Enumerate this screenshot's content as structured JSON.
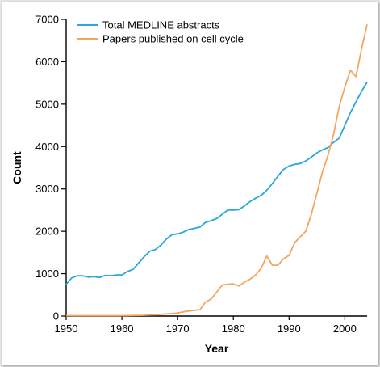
{
  "chart_data": {
    "type": "line",
    "xlabel": "Year",
    "ylabel": "Count",
    "xlim": [
      1950,
      2004
    ],
    "ylim": [
      0,
      7000
    ],
    "xticks": [
      "1950",
      "1960",
      "1970",
      "1980",
      "1990",
      "2000"
    ],
    "yticks": [
      "0",
      "1000",
      "2000",
      "3000",
      "4000",
      "5000",
      "6000",
      "7000"
    ],
    "grid": false,
    "legend_position": "top-left",
    "series": [
      {
        "name": "Total MEDLINE abstracts",
        "color": "#2ba6de",
        "x": [
          1950,
          1951,
          1952,
          1953,
          1954,
          1955,
          1956,
          1957,
          1958,
          1959,
          1960,
          1961,
          1962,
          1963,
          1964,
          1965,
          1966,
          1967,
          1968,
          1969,
          1970,
          1971,
          1972,
          1973,
          1974,
          1975,
          1976,
          1977,
          1978,
          1979,
          1980,
          1981,
          1982,
          1983,
          1984,
          1985,
          1986,
          1987,
          1988,
          1989,
          1990,
          1991,
          1992,
          1993,
          1994,
          1995,
          1996,
          1997,
          1998,
          1999,
          2000,
          2001,
          2002,
          2003,
          2004
        ],
        "values": [
          750,
          900,
          950,
          950,
          920,
          930,
          910,
          960,
          950,
          970,
          970,
          1050,
          1100,
          1250,
          1400,
          1530,
          1570,
          1670,
          1820,
          1920,
          1940,
          1980,
          2040,
          2070,
          2100,
          2210,
          2250,
          2300,
          2400,
          2500,
          2500,
          2510,
          2600,
          2700,
          2780,
          2850,
          2970,
          3130,
          3300,
          3460,
          3540,
          3580,
          3600,
          3660,
          3750,
          3850,
          3920,
          3980,
          4100,
          4200,
          4500,
          4800,
          5050,
          5300,
          5520
        ]
      },
      {
        "name": "Papers published on cell cycle",
        "color": "#f2a662",
        "x": [
          1950,
          1955,
          1960,
          1964,
          1966,
          1968,
          1970,
          1971,
          1972,
          1974,
          1975,
          1976,
          1977,
          1978,
          1979,
          1980,
          1981,
          1982,
          1983,
          1984,
          1985,
          1986,
          1987,
          1988,
          1989,
          1990,
          1991,
          1992,
          1993,
          1994,
          1995,
          1996,
          1997,
          1998,
          1999,
          2000,
          2001,
          2002,
          2003,
          2004
        ],
        "values": [
          10,
          10,
          10,
          20,
          30,
          50,
          70,
          100,
          120,
          150,
          330,
          400,
          560,
          730,
          750,
          760,
          710,
          800,
          870,
          970,
          1130,
          1420,
          1200,
          1200,
          1350,
          1430,
          1730,
          1870,
          2000,
          2400,
          2900,
          3400,
          3800,
          4300,
          4950,
          5400,
          5800,
          5650,
          6300,
          6880
        ]
      }
    ]
  }
}
